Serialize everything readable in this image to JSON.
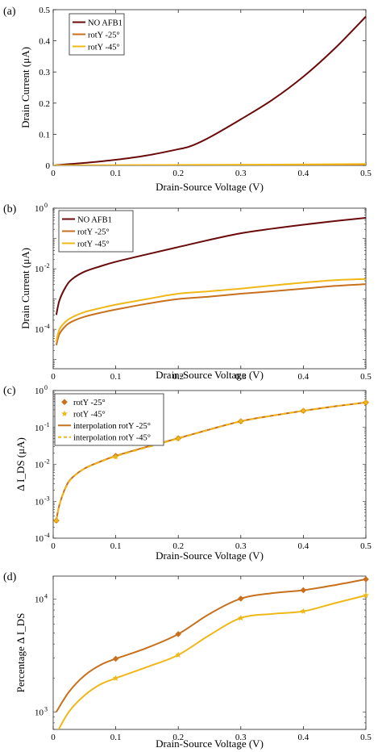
{
  "colors": {
    "no_afb1": "#6a0a0a",
    "rot25": "#c8701c",
    "rot45": "#efb818"
  },
  "chart_data": [
    {
      "panel": "(a)",
      "type": "line",
      "xlabel": "Drain-Source Voltage (V)",
      "ylabel": "Drain Current (μA)",
      "xlim": [
        0,
        0.5
      ],
      "ylim": [
        0,
        0.5
      ],
      "yscale": "linear",
      "grid": false,
      "legend": "top-left",
      "x_ticks": [
        "0",
        "0.1",
        "0.2",
        "0.3",
        "0.4",
        "0.5"
      ],
      "y_ticks": [
        "0",
        "0.1",
        "0.2",
        "0.3",
        "0.4",
        "0.5"
      ],
      "series": [
        {
          "name": "NO AFB1",
          "color": "no_afb1",
          "x": [
            0,
            0.05,
            0.1,
            0.15,
            0.2,
            0.22,
            0.25,
            0.3,
            0.35,
            0.4,
            0.45,
            0.5
          ],
          "y": [
            0,
            0.008,
            0.018,
            0.032,
            0.052,
            0.062,
            0.09,
            0.148,
            0.21,
            0.285,
            0.375,
            0.478
          ]
        },
        {
          "name": "rotY -25°",
          "color": "rot25",
          "x": [
            0,
            0.1,
            0.2,
            0.3,
            0.4,
            0.5
          ],
          "y": [
            0,
            0.0004,
            0.0009,
            0.0014,
            0.002,
            0.003
          ]
        },
        {
          "name": "rotY -45°",
          "color": "rot45",
          "x": [
            0,
            0.1,
            0.2,
            0.3,
            0.4,
            0.5
          ],
          "y": [
            0,
            0.0006,
            0.0015,
            0.0022,
            0.0032,
            0.0045
          ]
        }
      ]
    },
    {
      "panel": "(b)",
      "type": "line",
      "xlabel": "Drain-Source Voltage (V)",
      "ylabel": "Drain Current (μA)",
      "xlim": [
        0,
        0.5
      ],
      "ylim": [
        5e-06,
        1
      ],
      "yscale": "log",
      "grid": false,
      "legend": "top-left",
      "x_ticks": [
        "0",
        "0.1",
        "0.2",
        "0.3",
        "0.4",
        "0.5"
      ],
      "y_ticks": [
        {
          "base": "10",
          "exp": "0",
          "value": 1
        },
        {
          "base": "10",
          "exp": "-2",
          "value": 0.01
        },
        {
          "base": "10",
          "exp": "-4",
          "value": 0.0001
        }
      ],
      "series": [
        {
          "name": "NO AFB1",
          "color": "no_afb1",
          "x": [
            0.005,
            0.01,
            0.02,
            0.03,
            0.05,
            0.075,
            0.1,
            0.15,
            0.2,
            0.25,
            0.3,
            0.35,
            0.4,
            0.45,
            0.5
          ],
          "y": [
            0.0003,
            0.0009,
            0.0025,
            0.0045,
            0.008,
            0.012,
            0.017,
            0.03,
            0.052,
            0.09,
            0.148,
            0.21,
            0.285,
            0.375,
            0.478
          ]
        },
        {
          "name": "rotY -25°",
          "color": "rot25",
          "x": [
            0.005,
            0.01,
            0.02,
            0.03,
            0.05,
            0.075,
            0.1,
            0.15,
            0.2,
            0.25,
            0.3,
            0.35,
            0.4,
            0.45,
            0.5
          ],
          "y": [
            3e-05,
            7e-05,
            0.00013,
            0.00018,
            0.00026,
            0.00035,
            0.00045,
            0.0007,
            0.001,
            0.0012,
            0.0015,
            0.0018,
            0.0022,
            0.0027,
            0.0031
          ]
        },
        {
          "name": "rotY -45°",
          "color": "rot45",
          "x": [
            0.005,
            0.01,
            0.02,
            0.03,
            0.05,
            0.075,
            0.1,
            0.15,
            0.2,
            0.25,
            0.3,
            0.35,
            0.4,
            0.45,
            0.5
          ],
          "y": [
            4e-05,
            0.0001,
            0.00018,
            0.00025,
            0.00037,
            0.0005,
            0.00065,
            0.001,
            0.0015,
            0.0018,
            0.0022,
            0.0028,
            0.0035,
            0.0042,
            0.0046
          ]
        }
      ]
    },
    {
      "panel": "(c)",
      "type": "line",
      "xlabel": "Drain-Source Voltage (V)",
      "ylabel": "Δ I_DS (μA)",
      "xlim": [
        0,
        0.5
      ],
      "ylim": [
        0.0001,
        1
      ],
      "yscale": "log",
      "grid": false,
      "legend": "top-left",
      "x_ticks": [
        "0",
        "0.1",
        "0.2",
        "0.3",
        "0.4",
        "0.5"
      ],
      "y_ticks": [
        {
          "base": "10",
          "exp": "0",
          "value": 1
        },
        {
          "base": "10",
          "exp": "-1",
          "value": 0.1
        },
        {
          "base": "10",
          "exp": "-2",
          "value": 0.01
        },
        {
          "base": "10",
          "exp": "-3",
          "value": 0.001
        },
        {
          "base": "10",
          "exp": "-4",
          "value": 0.0001
        }
      ],
      "markers": [
        {
          "name": "rotY -25°",
          "color": "rot25",
          "shape": "diamond",
          "x": [
            0.005,
            0.1,
            0.2,
            0.3,
            0.4,
            0.5
          ],
          "y": [
            0.0003,
            0.017,
            0.051,
            0.147,
            0.283,
            0.475
          ]
        },
        {
          "name": "rotY -45°",
          "color": "rot45",
          "shape": "star",
          "x": [
            0.005,
            0.1,
            0.2,
            0.3,
            0.4,
            0.5
          ],
          "y": [
            0.0003,
            0.016,
            0.05,
            0.146,
            0.282,
            0.473
          ]
        }
      ],
      "series": [
        {
          "name": "interpolation rotY -25°",
          "color": "rot25",
          "dash": false,
          "x": [
            0.005,
            0.01,
            0.02,
            0.03,
            0.05,
            0.075,
            0.1,
            0.15,
            0.2,
            0.25,
            0.3,
            0.35,
            0.4,
            0.45,
            0.5
          ],
          "y": [
            0.0003,
            0.0008,
            0.0024,
            0.0043,
            0.0077,
            0.0118,
            0.017,
            0.03,
            0.051,
            0.088,
            0.147,
            0.208,
            0.283,
            0.372,
            0.475
          ]
        },
        {
          "name": "interpolation rotY -45°",
          "color": "rot45",
          "dash": true,
          "x": [
            0.005,
            0.01,
            0.02,
            0.03,
            0.05,
            0.075,
            0.1,
            0.15,
            0.2,
            0.25,
            0.3,
            0.35,
            0.4,
            0.45,
            0.5
          ],
          "y": [
            0.0003,
            0.0008,
            0.0023,
            0.0042,
            0.0076,
            0.0116,
            0.0165,
            0.029,
            0.05,
            0.087,
            0.146,
            0.207,
            0.282,
            0.371,
            0.473
          ]
        }
      ]
    },
    {
      "panel": "(d)",
      "type": "line",
      "xlabel": "Drain-Source Voltage (V)",
      "ylabel": "Percentage Δ I_DS",
      "xlim": [
        0,
        0.5
      ],
      "ylim": [
        700,
        16000
      ],
      "yscale": "log",
      "grid": false,
      "legend": "none",
      "x_ticks": [
        "0",
        "0.1",
        "0.2",
        "0.3",
        "0.4",
        "0.5"
      ],
      "y_ticks": [
        {
          "base": "10",
          "exp": "4",
          "value": 10000
        },
        {
          "base": "10",
          "exp": "3",
          "value": 1000
        }
      ],
      "markers": [
        {
          "name": "rotY -25°",
          "color": "rot25",
          "shape": "diamond",
          "x": [
            0.1,
            0.2,
            0.3,
            0.4,
            0.5
          ],
          "y": [
            2960,
            4900,
            10100,
            12000,
            15000
          ]
        },
        {
          "name": "rotY -45°",
          "color": "rot45",
          "shape": "star",
          "x": [
            0.1,
            0.2,
            0.3,
            0.4,
            0.5
          ],
          "y": [
            1990,
            3200,
            6800,
            7800,
            10800
          ]
        }
      ],
      "series": [
        {
          "name": "rotY -25°",
          "color": "rot25",
          "x": [
            0.005,
            0.025,
            0.05,
            0.075,
            0.1,
            0.15,
            0.2,
            0.25,
            0.3,
            0.35,
            0.4,
            0.45,
            0.5
          ],
          "y": [
            1000,
            1500,
            2100,
            2600,
            2960,
            3700,
            4900,
            7400,
            10100,
            11300,
            12000,
            13300,
            15000
          ]
        },
        {
          "name": "rotY -45°",
          "color": "rot45",
          "x": [
            0.005,
            0.025,
            0.05,
            0.075,
            0.1,
            0.15,
            0.2,
            0.25,
            0.3,
            0.35,
            0.4,
            0.45,
            0.5
          ],
          "y": [
            640,
            1000,
            1400,
            1750,
            1990,
            2500,
            3200,
            4800,
            6800,
            7400,
            7800,
            9200,
            10800
          ]
        }
      ]
    }
  ]
}
